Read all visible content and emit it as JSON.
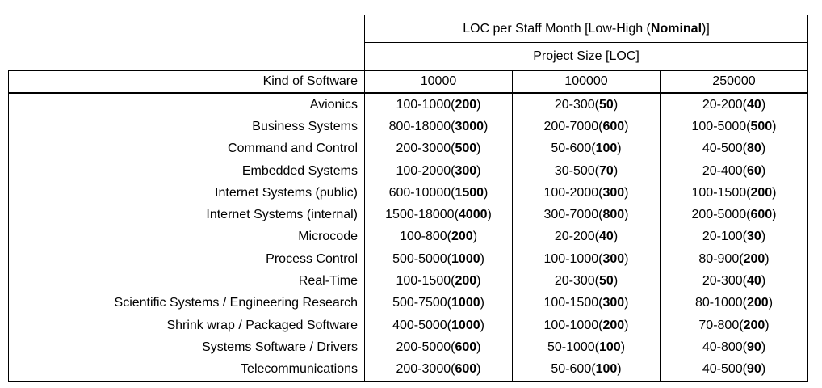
{
  "table": {
    "title": [
      "LOC per Staff Month [Low-High (",
      "Nominal",
      ")]"
    ],
    "subtitle": "Project Size [LOC]",
    "columns": [
      "Kind of Software",
      "10000",
      "100000",
      "250000"
    ],
    "rows": [
      {
        "kind": "Avionics",
        "cells": [
          [
            "100-1000(",
            "200",
            ")"
          ],
          [
            "20-300(",
            "50",
            ")"
          ],
          [
            "20-200(",
            "40",
            ")"
          ]
        ]
      },
      {
        "kind": "Business Systems",
        "cells": [
          [
            "800-18000(",
            "3000",
            ")"
          ],
          [
            "200-7000(",
            "600",
            ")"
          ],
          [
            "100-5000(",
            "500",
            ")"
          ]
        ]
      },
      {
        "kind": "Command and Control",
        "cells": [
          [
            "200-3000(",
            "500",
            ")"
          ],
          [
            "50-600(",
            "100",
            ")"
          ],
          [
            "40-500(",
            "80",
            ")"
          ]
        ]
      },
      {
        "kind": "Embedded Systems",
        "cells": [
          [
            "100-2000(",
            "300",
            ")"
          ],
          [
            "30-500(",
            "70",
            ")"
          ],
          [
            "20-400(",
            "60",
            ")"
          ]
        ]
      },
      {
        "kind": "Internet Systems (public)",
        "cells": [
          [
            "600-10000(",
            "1500",
            ")"
          ],
          [
            "100-2000(",
            "300",
            ")"
          ],
          [
            "100-1500(",
            "200",
            ")"
          ]
        ]
      },
      {
        "kind": "Internet Systems (internal)",
        "cells": [
          [
            "1500-18000(",
            "4000",
            ")"
          ],
          [
            "300-7000(",
            "800",
            ")"
          ],
          [
            "200-5000(",
            "600",
            ")"
          ]
        ]
      },
      {
        "kind": "Microcode",
        "cells": [
          [
            "100-800(",
            "200",
            ")"
          ],
          [
            "20-200(",
            "40",
            ")"
          ],
          [
            "20-100(",
            "30",
            ")"
          ]
        ]
      },
      {
        "kind": "Process Control",
        "cells": [
          [
            "500-5000(",
            "1000",
            ")"
          ],
          [
            "100-1000(",
            "300",
            ")"
          ],
          [
            "80-900(",
            "200",
            ")"
          ]
        ]
      },
      {
        "kind": "Real-Time",
        "cells": [
          [
            "100-1500(",
            "200",
            ")"
          ],
          [
            "20-300(",
            "50",
            ")"
          ],
          [
            "20-300(",
            "40",
            ")"
          ]
        ]
      },
      {
        "kind": "Scientific Systems / Engineering Research",
        "cells": [
          [
            "500-7500(",
            "1000",
            ")"
          ],
          [
            "100-1500(",
            "300",
            ")"
          ],
          [
            "80-1000(",
            "200",
            ")"
          ]
        ]
      },
      {
        "kind": "Shrink wrap / Packaged Software",
        "cells": [
          [
            "400-5000(",
            "1000",
            ")"
          ],
          [
            "100-1000(",
            "200",
            ")"
          ],
          [
            "70-800(",
            "200",
            ")"
          ]
        ]
      },
      {
        "kind": "Systems Software / Drivers",
        "cells": [
          [
            "200-5000(",
            "600",
            ")"
          ],
          [
            "50-1000(",
            "100",
            ")"
          ],
          [
            "40-800(",
            "90",
            ")"
          ]
        ]
      },
      {
        "kind": "Telecommunications",
        "cells": [
          [
            "200-3000(",
            "600",
            ")"
          ],
          [
            "50-600(",
            "100",
            ")"
          ],
          [
            "40-500(",
            "90",
            ")"
          ]
        ]
      }
    ]
  }
}
